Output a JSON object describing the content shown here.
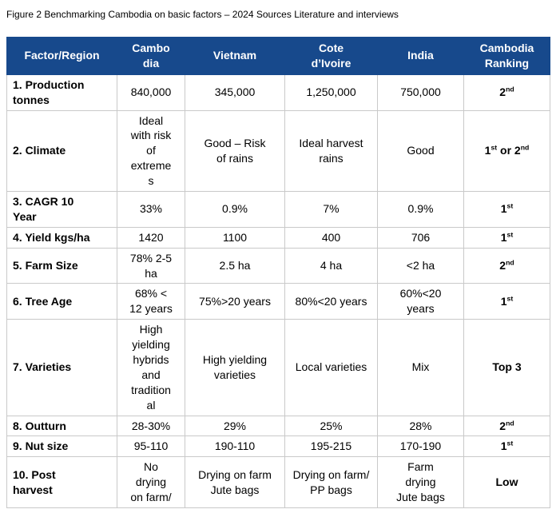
{
  "figure_title": "Figure 2 Benchmarking Cambodia on basic factors – 2024 Sources Literature and interviews",
  "colors": {
    "header_bg": "#17498C",
    "header_text": "#FFFFFF",
    "border": "#C9C9C9"
  },
  "table": {
    "columns": [
      {
        "key": "factor",
        "label": "Factor/Region"
      },
      {
        "key": "cambodia",
        "label": "Cambo\ndia"
      },
      {
        "key": "vietnam",
        "label": "Vietnam"
      },
      {
        "key": "cote_divoire",
        "label": "Cote\nd’Ivoire"
      },
      {
        "key": "india",
        "label": "India"
      },
      {
        "key": "ranking",
        "label": "Cambodia\nRanking"
      }
    ],
    "rows": [
      {
        "factor": "1. Production\ntonnes",
        "cambodia": "840,000",
        "vietnam": "345,000",
        "cote_divoire": "1,250,000",
        "india": "750,000",
        "ranking": "2nd"
      },
      {
        "factor": "2. Climate",
        "cambodia": "Ideal\nwith risk\nof\nextreme\ns",
        "vietnam": "Good – Risk\nof rains",
        "cote_divoire": "Ideal harvest\nrains",
        "india": "Good",
        "ranking": "1st or 2nd"
      },
      {
        "factor": "3. CAGR 10\nYear",
        "cambodia": "33%",
        "vietnam": "0.9%",
        "cote_divoire": "7%",
        "india": "0.9%",
        "ranking": "1st"
      },
      {
        "factor": "4. Yield kgs/ha",
        "cambodia": "1420",
        "vietnam": "1100",
        "cote_divoire": "400",
        "india": "706",
        "ranking": "1st"
      },
      {
        "factor": "5. Farm Size",
        "cambodia": "78% 2-5\nha",
        "vietnam": "2.5 ha",
        "cote_divoire": "4 ha",
        "india": "<2 ha",
        "ranking": "2nd"
      },
      {
        "factor": "6. Tree Age",
        "cambodia": "68% <\n12 years",
        "vietnam": "75%>20 years",
        "cote_divoire": "80%<20 years",
        "india": "60%<20\nyears",
        "ranking": "1st"
      },
      {
        "factor": "7. Varieties",
        "cambodia": "High\nyielding\nhybrids\nand\ntradition\nal",
        "vietnam": "High yielding\nvarieties",
        "cote_divoire": "Local varieties",
        "india": "Mix",
        "ranking": "Top 3"
      },
      {
        "factor": "8. Outturn",
        "cambodia": "28-30%",
        "vietnam": "29%",
        "cote_divoire": "25%",
        "india": "28%",
        "ranking": "2nd"
      },
      {
        "factor": "9. Nut size",
        "cambodia": "95-110",
        "vietnam": "190-110",
        "cote_divoire": "195-215",
        "india": "170-190",
        "ranking": "1st"
      },
      {
        "factor": "10. Post\nharvest",
        "cambodia": "No\ndrying\non farm/",
        "vietnam": "Drying on farm\nJute bags",
        "cote_divoire": "Drying on farm/\nPP bags",
        "india": "Farm\ndrying\nJute bags",
        "ranking": "Low"
      }
    ]
  }
}
